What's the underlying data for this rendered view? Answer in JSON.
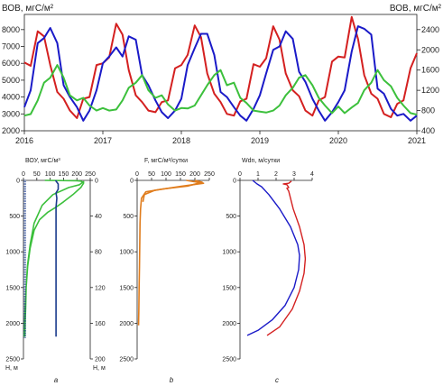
{
  "chart_data": [
    {
      "type": "line",
      "left_label": "ВОВ, мгС/м²",
      "right_label": "ВОВ, мгС/м²",
      "x_ticks": [
        "2016",
        "2017",
        "2018",
        "2019",
        "2020",
        "2021"
      ],
      "xlim": [
        2016.0,
        2021.0
      ],
      "y_left_ticks": [
        "2000",
        "3000",
        "4000",
        "5000",
        "6000",
        "7000",
        "8000"
      ],
      "ylim_left": [
        2000,
        8900
      ],
      "y_right_ticks": [
        "400",
        "800",
        "1200",
        "1600",
        "2000",
        "2400"
      ],
      "ylim_right": [
        400,
        2700
      ],
      "grid": false,
      "series": [
        {
          "axis": "left",
          "color": "#d42020",
          "x": [
            2016.0,
            2016.08,
            2016.17,
            2016.25,
            2016.33,
            2016.42,
            2016.5,
            2016.58,
            2016.67,
            2016.75,
            2016.83,
            2016.92,
            2017.0,
            2017.08,
            2017.17,
            2017.25,
            2017.33,
            2017.42,
            2017.5,
            2017.58,
            2017.67,
            2017.75,
            2017.83,
            2017.92,
            2018.0,
            2018.08,
            2018.17,
            2018.25,
            2018.33,
            2018.42,
            2018.5,
            2018.58,
            2018.67,
            2018.75,
            2018.83,
            2018.92,
            2019.0,
            2019.08,
            2019.17,
            2019.25,
            2019.33,
            2019.42,
            2019.5,
            2019.58,
            2019.67,
            2019.75,
            2019.83,
            2019.92,
            2020.0,
            2020.08,
            2020.17,
            2020.25,
            2020.33,
            2020.42,
            2020.5,
            2020.58,
            2020.67,
            2020.75,
            2020.83,
            2020.92,
            2021.0
          ],
          "values": [
            6050,
            5850,
            7900,
            7600,
            5900,
            4300,
            3900,
            3200,
            2750,
            3900,
            4000,
            5900,
            6000,
            6350,
            8350,
            7700,
            5600,
            4100,
            3700,
            3200,
            3100,
            3700,
            3800,
            5700,
            5900,
            6500,
            8250,
            7550,
            5400,
            4200,
            3700,
            3000,
            2900,
            3750,
            3900,
            5950,
            5800,
            6300,
            8200,
            7400,
            5400,
            4400,
            4050,
            3200,
            2900,
            3800,
            4000,
            6100,
            6400,
            6350,
            8750,
            7450,
            5300,
            4200,
            3900,
            3000,
            2800,
            3600,
            3800,
            5700,
            6600
          ]
        },
        {
          "axis": "left",
          "color": "#1a1ac8",
          "x": [
            2016.0,
            2016.08,
            2016.17,
            2016.25,
            2016.33,
            2016.42,
            2016.5,
            2016.58,
            2016.67,
            2016.75,
            2016.83,
            2016.92,
            2017.0,
            2017.08,
            2017.17,
            2017.25,
            2017.33,
            2017.42,
            2017.5,
            2017.58,
            2017.67,
            2017.75,
            2017.83,
            2017.92,
            2018.0,
            2018.08,
            2018.17,
            2018.25,
            2018.33,
            2018.42,
            2018.5,
            2018.58,
            2018.67,
            2018.75,
            2018.83,
            2018.92,
            2019.0,
            2019.08,
            2019.17,
            2019.25,
            2019.33,
            2019.42,
            2019.5,
            2019.58,
            2019.67,
            2019.75,
            2019.83,
            2019.92,
            2020.0,
            2020.08,
            2020.17,
            2020.25,
            2020.33,
            2020.42,
            2020.5,
            2020.58,
            2020.67,
            2020.75,
            2020.83,
            2020.92,
            2021.0
          ],
          "values": [
            3400,
            4400,
            7200,
            7500,
            8100,
            7200,
            4700,
            4000,
            3400,
            2600,
            3200,
            4400,
            6000,
            6400,
            6950,
            6400,
            7600,
            7400,
            5300,
            4700,
            3800,
            3100,
            2750,
            3200,
            3900,
            5900,
            6900,
            7750,
            7750,
            6500,
            4300,
            4000,
            3400,
            2900,
            2600,
            3300,
            4100,
            5400,
            6800,
            7000,
            7900,
            7450,
            5500,
            4900,
            3900,
            3200,
            2600,
            3100,
            3700,
            4400,
            6700,
            8200,
            8050,
            7700,
            4500,
            4200,
            3300,
            2900,
            3000,
            2600,
            2900
          ]
        },
        {
          "axis": "right",
          "color": "#3cc03c",
          "x": [
            2016.0,
            2016.08,
            2016.17,
            2016.25,
            2016.33,
            2016.42,
            2016.5,
            2016.58,
            2016.67,
            2016.75,
            2016.83,
            2016.92,
            2017.0,
            2017.08,
            2017.17,
            2017.25,
            2017.33,
            2017.42,
            2017.5,
            2017.58,
            2017.67,
            2017.75,
            2017.83,
            2017.92,
            2018.0,
            2018.08,
            2018.17,
            2018.25,
            2018.33,
            2018.42,
            2018.5,
            2018.58,
            2018.67,
            2018.75,
            2018.83,
            2018.92,
            2019.0,
            2019.08,
            2019.17,
            2019.25,
            2019.33,
            2019.42,
            2019.5,
            2019.58,
            2019.67,
            2019.75,
            2019.83,
            2019.92,
            2020.0,
            2020.08,
            2020.17,
            2020.25,
            2020.33,
            2020.42,
            2020.5,
            2020.58,
            2020.67,
            2020.75,
            2020.83,
            2020.92,
            2021.0
          ],
          "values": [
            700,
            730,
            1000,
            1350,
            1450,
            1700,
            1450,
            1100,
            1000,
            1050,
            900,
            800,
            850,
            800,
            820,
            1000,
            1250,
            1350,
            1500,
            1200,
            1050,
            1100,
            920,
            800,
            850,
            840,
            900,
            1100,
            1300,
            1500,
            1600,
            1300,
            1350,
            1050,
            950,
            800,
            780,
            760,
            800,
            900,
            1100,
            1250,
            1450,
            1500,
            1300,
            1050,
            900,
            750,
            880,
            750,
            860,
            950,
            1200,
            1350,
            1600,
            1400,
            1280,
            1050,
            900,
            750,
            720
          ]
        }
      ]
    },
    {
      "type": "line",
      "top_label": "ВОУ, мгС/м³",
      "x_ticks": [
        "0",
        "50",
        "100",
        "150",
        "200",
        "250"
      ],
      "xlim": [
        0,
        250
      ],
      "y_ticks": [
        "0",
        "500",
        "1000",
        "1500",
        "2000",
        "2500"
      ],
      "ylim": [
        0,
        2500
      ],
      "ylabel": "Н, м",
      "y2_ticks": [
        "0",
        "40",
        "80",
        "120",
        "160",
        "200"
      ],
      "ylim2": [
        0,
        200
      ],
      "y2label": "Н, м",
      "panel_label": "a",
      "series": [
        {
          "axis": "primary",
          "color": "#3cc03c",
          "points": [
            [
              80,
              0
            ],
            [
              200,
              5
            ],
            [
              215,
              10
            ],
            [
              222,
              25
            ],
            [
              210,
              60
            ],
            [
              170,
              100
            ],
            [
              110,
              200
            ],
            [
              70,
              350
            ],
            [
              40,
              600
            ],
            [
              25,
              900
            ],
            [
              15,
              1200
            ],
            [
              10,
              1500
            ],
            [
              6,
              1800
            ],
            [
              4,
              2000
            ],
            [
              2,
              2180
            ],
            [
              5,
              2180
            ],
            [
              6,
              2000
            ],
            [
              8,
              1800
            ],
            [
              10,
              1500
            ],
            [
              16,
              1200
            ],
            [
              25,
              950
            ],
            [
              40,
              700
            ],
            [
              60,
              550
            ],
            [
              90,
              450
            ],
            [
              120,
              380
            ],
            [
              150,
              300
            ],
            [
              185,
              200
            ],
            [
              215,
              100
            ],
            [
              225,
              40
            ],
            [
              225,
              10
            ]
          ]
        },
        {
          "axis": "secondary",
          "color": "#1a3a8c",
          "points": [
            [
              120,
              0
            ],
            [
              130,
              4
            ],
            [
              130,
              10
            ],
            [
              122,
              14
            ],
            [
              125,
              20
            ],
            [
              122,
              30
            ],
            [
              122,
              40
            ],
            [
              122,
              60
            ],
            [
              122,
              80
            ],
            [
              122,
              100
            ],
            [
              122,
              120
            ],
            [
              122,
              140
            ],
            [
              122,
              160
            ],
            [
              122,
              175
            ]
          ]
        }
      ]
    },
    {
      "type": "line",
      "top_label": "F, мгС/м²/сутки",
      "x_ticks": [
        "0",
        "50",
        "100",
        "150",
        "200",
        "250"
      ],
      "xlim": [
        0,
        250
      ],
      "y_ticks": [
        "0",
        "500",
        "1000",
        "1500",
        "2000",
        "2500"
      ],
      "ylim": [
        0,
        2500
      ],
      "panel_label": "b",
      "series": [
        {
          "color": "#e07c1c",
          "points": [
            [
              200,
              0
            ],
            [
              225,
              25
            ],
            [
              175,
              80
            ],
            [
              90,
              120
            ],
            [
              30,
              160
            ],
            [
              15,
              250
            ],
            [
              12,
              400
            ],
            [
              10,
              600
            ],
            [
              9,
              900
            ],
            [
              8,
              1200
            ],
            [
              7,
              1500
            ],
            [
              6,
              1800
            ],
            [
              5,
              2000
            ],
            [
              5,
              2030
            ]
          ]
        },
        {
          "color": "#e07c1c",
          "points": [
            [
              170,
              0
            ],
            [
              230,
              40
            ],
            [
              150,
              85
            ],
            [
              60,
              140
            ],
            [
              25,
              200
            ],
            [
              20,
              300
            ]
          ]
        }
      ]
    },
    {
      "type": "line",
      "top_label": "Wdn, м/сутки",
      "x_ticks": [
        "0",
        "1",
        "2",
        "3",
        "4"
      ],
      "xlim": [
        0,
        4
      ],
      "y_ticks": [
        "0",
        "500",
        "1000",
        "1500",
        "2000",
        "2500"
      ],
      "ylim": [
        0,
        2500
      ],
      "panel_label": "c",
      "series": [
        {
          "color": "#d42020",
          "points": [
            [
              2.85,
              10
            ],
            [
              2.7,
              40
            ],
            [
              2.4,
              50
            ],
            [
              2.6,
              60
            ],
            [
              2.7,
              100
            ],
            [
              2.6,
              110
            ],
            [
              2.7,
              150
            ],
            [
              2.95,
              400
            ],
            [
              3.3,
              650
            ],
            [
              3.55,
              900
            ],
            [
              3.62,
              1100
            ],
            [
              3.55,
              1300
            ],
            [
              3.3,
              1550
            ],
            [
              2.9,
              1800
            ],
            [
              2.2,
              2050
            ],
            [
              1.5,
              2170
            ]
          ]
        },
        {
          "color": "#1a1ac8",
          "points": [
            [
              0.7,
              0
            ],
            [
              0.95,
              50
            ],
            [
              1.2,
              90
            ],
            [
              1.6,
              200
            ],
            [
              2.2,
              400
            ],
            [
              2.8,
              650
            ],
            [
              3.2,
              900
            ],
            [
              3.3,
              1050
            ],
            [
              3.25,
              1250
            ],
            [
              3.0,
              1500
            ],
            [
              2.5,
              1750
            ],
            [
              1.8,
              1950
            ],
            [
              1.0,
              2100
            ],
            [
              0.4,
              2170
            ]
          ]
        }
      ]
    }
  ]
}
